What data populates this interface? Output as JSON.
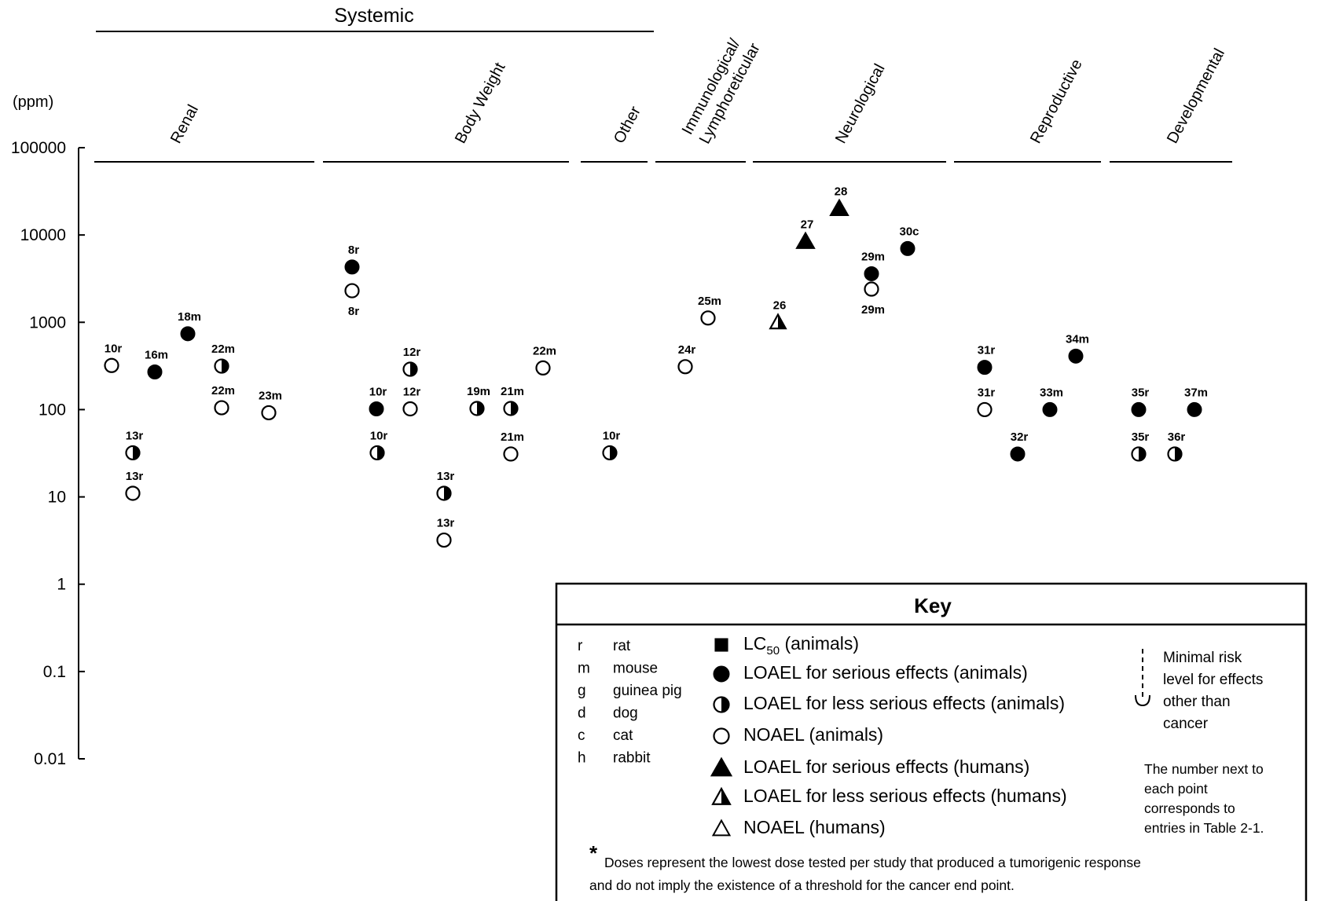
{
  "chart_data": {
    "type": "scatter",
    "y_unit_label": "(ppm)",
    "y_scale": "log",
    "ylim": [
      0.01,
      100000
    ],
    "y_ticks": [
      "100000",
      "10000",
      "1000",
      "100",
      "10",
      "1",
      "0.1",
      "0.01"
    ],
    "group_header": "Systemic",
    "categories": [
      {
        "name": "Renal",
        "systemic": true
      },
      {
        "name": "Body Weight",
        "systemic": true
      },
      {
        "name": "Other",
        "systemic": true
      },
      {
        "name": "Immunological/\nLymphoreticular",
        "systemic": false
      },
      {
        "name": "Neurological",
        "systemic": false
      },
      {
        "name": "Reproductive",
        "systemic": false
      },
      {
        "name": "Developmental",
        "systemic": false
      }
    ],
    "points": [
      {
        "category": "Renal",
        "label": "10r",
        "value": 320,
        "marker": "noael_animal"
      },
      {
        "category": "Renal",
        "label": "13r",
        "value": 32,
        "marker": "loael_less_animal"
      },
      {
        "category": "Renal",
        "label": "13r",
        "value": 11,
        "marker": "noael_animal"
      },
      {
        "category": "Renal",
        "label": "16m",
        "value": 270,
        "marker": "loael_serious_animal"
      },
      {
        "category": "Renal",
        "label": "18m",
        "value": 740,
        "marker": "loael_serious_animal"
      },
      {
        "category": "Renal",
        "label": "22m",
        "value": 315,
        "marker": "loael_less_animal"
      },
      {
        "category": "Renal",
        "label": "22m",
        "value": 105,
        "marker": "noael_animal"
      },
      {
        "category": "Renal",
        "label": "23m",
        "value": 92,
        "marker": "noael_animal"
      },
      {
        "category": "Body Weight",
        "label": "8r",
        "value": 4300,
        "marker": "loael_serious_animal"
      },
      {
        "category": "Body Weight",
        "label": "8r",
        "value": 2300,
        "marker": "noael_animal"
      },
      {
        "category": "Body Weight",
        "label": "10r",
        "value": 102,
        "marker": "loael_serious_animal"
      },
      {
        "category": "Body Weight",
        "label": "10r",
        "value": 32,
        "marker": "loael_less_animal"
      },
      {
        "category": "Body Weight",
        "label": "12r",
        "value": 290,
        "marker": "loael_less_animal"
      },
      {
        "category": "Body Weight",
        "label": "12r",
        "value": 102,
        "marker": "noael_animal"
      },
      {
        "category": "Body Weight",
        "label": "13r",
        "value": 11,
        "marker": "loael_less_animal"
      },
      {
        "category": "Body Weight",
        "label": "13r",
        "value": 3.2,
        "marker": "noael_animal"
      },
      {
        "category": "Body Weight",
        "label": "19m",
        "value": 103,
        "marker": "loael_less_animal"
      },
      {
        "category": "Body Weight",
        "label": "21m",
        "value": 103,
        "marker": "loael_less_animal"
      },
      {
        "category": "Body Weight",
        "label": "21m",
        "value": 31,
        "marker": "noael_animal"
      },
      {
        "category": "Body Weight",
        "label": "22m",
        "value": 300,
        "marker": "noael_animal"
      },
      {
        "category": "Other",
        "label": "10r",
        "value": 32,
        "marker": "loael_less_animal"
      },
      {
        "category": "Immunological/\nLymphoreticular",
        "label": "24r",
        "value": 310,
        "marker": "noael_animal"
      },
      {
        "category": "Immunological/\nLymphoreticular",
        "label": "25m",
        "value": 1120,
        "marker": "noael_animal"
      },
      {
        "category": "Neurological",
        "label": "26",
        "value": 1000,
        "marker": "loael_less_human"
      },
      {
        "category": "Neurological",
        "label": "27",
        "value": 8400,
        "marker": "loael_serious_human"
      },
      {
        "category": "Neurological",
        "label": "28",
        "value": 20000,
        "marker": "loael_serious_human"
      },
      {
        "category": "Neurological",
        "label": "29m",
        "value": 3600,
        "marker": "loael_serious_animal"
      },
      {
        "category": "Neurological",
        "label": "29m",
        "value": 2400,
        "marker": "noael_animal"
      },
      {
        "category": "Neurological",
        "label": "30c",
        "value": 7000,
        "marker": "loael_serious_animal"
      },
      {
        "category": "Reproductive",
        "label": "31r",
        "value": 305,
        "marker": "loael_serious_animal"
      },
      {
        "category": "Reproductive",
        "label": "31r",
        "value": 100,
        "marker": "noael_animal"
      },
      {
        "category": "Reproductive",
        "label": "32r",
        "value": 31,
        "marker": "loael_serious_animal"
      },
      {
        "category": "Reproductive",
        "label": "33m",
        "value": 100,
        "marker": "loael_serious_animal"
      },
      {
        "category": "Reproductive",
        "label": "34m",
        "value": 410,
        "marker": "loael_serious_animal"
      },
      {
        "category": "Developmental",
        "label": "35r",
        "value": 100,
        "marker": "loael_serious_animal"
      },
      {
        "category": "Developmental",
        "label": "35r",
        "value": 31,
        "marker": "loael_less_animal"
      },
      {
        "category": "Developmental",
        "label": "36r",
        "value": 31,
        "marker": "loael_less_animal"
      },
      {
        "category": "Developmental",
        "label": "37m",
        "value": 100,
        "marker": "loael_serious_animal"
      }
    ],
    "legend": {
      "title": "Key",
      "species": [
        {
          "code": "r",
          "name": "rat"
        },
        {
          "code": "m",
          "name": "mouse"
        },
        {
          "code": "g",
          "name": "guinea pig"
        },
        {
          "code": "d",
          "name": "dog"
        },
        {
          "code": "c",
          "name": "cat"
        },
        {
          "code": "h",
          "name": "rabbit"
        }
      ],
      "markers": [
        {
          "marker": "lc50",
          "label": "LC",
          "sub": "50",
          "label_after": " (animals)"
        },
        {
          "marker": "loael_serious_animal",
          "label": "LOAEL for serious effects (animals)"
        },
        {
          "marker": "loael_less_animal",
          "label": "LOAEL for less serious effects (animals)"
        },
        {
          "marker": "noael_animal",
          "label": "NOAEL (animals)"
        },
        {
          "marker": "loael_serious_human",
          "label": "LOAEL for serious effects (humans)"
        },
        {
          "marker": "loael_less_human",
          "label": "LOAEL for less serious effects (humans)"
        },
        {
          "marker": "noael_human",
          "label": "NOAEL (humans)"
        }
      ],
      "mrl_lines": [
        "Minimal risk",
        "level for effects",
        "other than",
        "cancer"
      ],
      "note_lines": [
        "The number next to",
        "each point",
        "corresponds to",
        "entries in Table 2-1."
      ],
      "footnote_star": "*",
      "footnote_lines": [
        "Doses represent the lowest dose tested per study that produced a tumorigenic response",
        "and do not imply the existence of a threshold for the cancer end point."
      ]
    }
  }
}
